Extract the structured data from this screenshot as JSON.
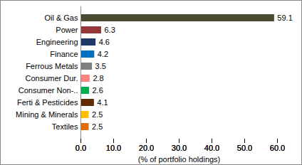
{
  "chart_data": {
    "type": "bar",
    "orientation": "horizontal",
    "categories": [
      "Oil & Gas",
      "Power",
      "Engineering",
      "Finance",
      "Ferrous Metals",
      "Consumer Dur.",
      "Consumer Non-..",
      "Ferti & Pesticides",
      "Mining & Minerals",
      "Textiles"
    ],
    "values": [
      59.1,
      6.3,
      4.6,
      4.2,
      3.5,
      2.8,
      2.6,
      4.1,
      2.5,
      2.5
    ],
    "colors": [
      "#4a4a30",
      "#953735",
      "#1f3864",
      "#0070c0",
      "#7f7f7f",
      "#ff8080",
      "#00b050",
      "#632b00",
      "#ffc000",
      "#e36c09"
    ],
    "x_label": "(% of portfolio holdings)",
    "xlim": [
      0,
      60
    ],
    "xticks": [
      {
        "value": 0,
        "label": "0.0"
      },
      {
        "value": 10,
        "label": "10.0"
      },
      {
        "value": 20,
        "label": "20.0"
      },
      {
        "value": 30,
        "label": "30.0"
      },
      {
        "value": 40,
        "label": "40.0"
      },
      {
        "value": 50,
        "label": "50.0"
      },
      {
        "value": 60,
        "label": "60.0"
      }
    ],
    "data_labels": true,
    "grid": false
  }
}
